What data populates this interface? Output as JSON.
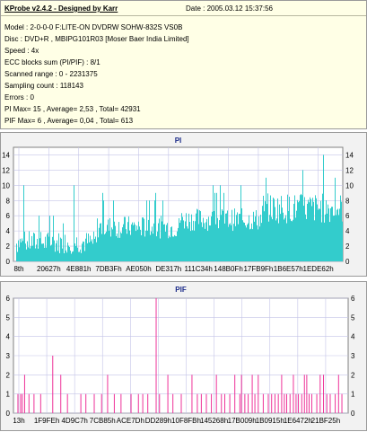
{
  "header": {
    "app_title": "KProbe v2.4.2 - Designed by Karr",
    "date": "Date : 2005.03.12 15:37:56"
  },
  "info_lines": [
    "Model : 2-0-0-0 F:LITE-ON DVDRW SOHW-832S  VS0B",
    "Disc : DVD+R , MBIPG101R03 [Moser Baer India Limited]",
    "Speed : 4x",
    "ECC blocks sum (PI/PIF) : 8/1",
    "Scanned range : 0 - 2231375",
    "Sampling count : 118143",
    "Errors : 0",
    "PI Max= 15 , Average= 2,53 , Total= 42931",
    "PIF Max= 6 , Average= 0,04 , Total= 613"
  ],
  "colors": {
    "panel_bg": "#f2f2f2",
    "plot_bg": "#ffffff",
    "grid": "#c4c4e8",
    "pi_fill": "#33cccc",
    "pif_bar": "#ee3399",
    "title_color": "#1a2a88"
  },
  "chart_data": [
    {
      "type": "bar",
      "title": "PI",
      "ylim": [
        0,
        15
      ],
      "y_ticks": [
        "0",
        "2",
        "4",
        "6",
        "8",
        "10",
        "12",
        "14"
      ],
      "x_tick_labels": [
        "8th",
        "20627h",
        "4E881h",
        "7DB3Fh",
        "AE050h",
        "DE317h",
        "111C34h",
        "148B0Fh",
        "17FB9Fh",
        "1B6E57h",
        "1EDE62h"
      ],
      "grid": true,
      "series": [
        {
          "description_segments": [
            {
              "range": "8th - 7DB3Fh",
              "typical_range": [
                1,
                4
              ],
              "peaks": [
                5,
                6,
                7,
                10
              ]
            },
            {
              "range": "7DB3Fh - 111C34h",
              "typical_range": [
                3,
                6
              ],
              "peaks": [
                8,
                9
              ]
            },
            {
              "range": "111C34h - 17FB9Fh",
              "typical_range": [
                4,
                7
              ],
              "peaks": [
                9,
                10
              ]
            },
            {
              "range": "17FB9Fh - 1EDE62h",
              "typical_range": [
                5,
                9
              ],
              "peaks": [
                11,
                12,
                14
              ]
            }
          ],
          "max": 15,
          "average": 2.53
        }
      ]
    },
    {
      "type": "bar",
      "title": "PIF",
      "ylim": [
        0,
        6
      ],
      "y_ticks": [
        "0",
        "1",
        "2",
        "3",
        "4",
        "5",
        "6"
      ],
      "x_tick_labels": [
        "13h",
        "1F9FEh",
        "4D9C7h",
        "7CB85h",
        "ACE7Dh",
        "DD289h",
        "10F8FBh",
        "145268h",
        "17B009h",
        "1B0915h",
        "1E6472h",
        "21BF25h"
      ],
      "grid": true,
      "spikes": [
        {
          "x_fraction": 0.012,
          "value": 1
        },
        {
          "x_fraction": 0.02,
          "value": 1
        },
        {
          "x_fraction": 0.025,
          "value": 1
        },
        {
          "x_fraction": 0.032,
          "value": 2
        },
        {
          "x_fraction": 0.045,
          "value": 1
        },
        {
          "x_fraction": 0.06,
          "value": 1
        },
        {
          "x_fraction": 0.08,
          "value": 1
        },
        {
          "x_fraction": 0.116,
          "value": 3
        },
        {
          "x_fraction": 0.14,
          "value": 2
        },
        {
          "x_fraction": 0.16,
          "value": 1
        },
        {
          "x_fraction": 0.2,
          "value": 1
        },
        {
          "x_fraction": 0.215,
          "value": 1
        },
        {
          "x_fraction": 0.24,
          "value": 1
        },
        {
          "x_fraction": 0.262,
          "value": 1
        },
        {
          "x_fraction": 0.28,
          "value": 2
        },
        {
          "x_fraction": 0.3,
          "value": 1
        },
        {
          "x_fraction": 0.32,
          "value": 1
        },
        {
          "x_fraction": 0.35,
          "value": 1
        },
        {
          "x_fraction": 0.372,
          "value": 1
        },
        {
          "x_fraction": 0.385,
          "value": 1
        },
        {
          "x_fraction": 0.4,
          "value": 1
        },
        {
          "x_fraction": 0.425,
          "value": 6
        },
        {
          "x_fraction": 0.435,
          "value": 1
        },
        {
          "x_fraction": 0.46,
          "value": 2
        },
        {
          "x_fraction": 0.475,
          "value": 1
        },
        {
          "x_fraction": 0.5,
          "value": 1
        },
        {
          "x_fraction": 0.532,
          "value": 2
        },
        {
          "x_fraction": 0.548,
          "value": 1
        },
        {
          "x_fraction": 0.56,
          "value": 1
        },
        {
          "x_fraction": 0.575,
          "value": 1
        },
        {
          "x_fraction": 0.59,
          "value": 1
        },
        {
          "x_fraction": 0.605,
          "value": 2
        },
        {
          "x_fraction": 0.62,
          "value": 1
        },
        {
          "x_fraction": 0.63,
          "value": 1
        },
        {
          "x_fraction": 0.645,
          "value": 1
        },
        {
          "x_fraction": 0.66,
          "value": 2
        },
        {
          "x_fraction": 0.675,
          "value": 1
        },
        {
          "x_fraction": 0.68,
          "value": 2
        },
        {
          "x_fraction": 0.69,
          "value": 1
        },
        {
          "x_fraction": 0.7,
          "value": 1
        },
        {
          "x_fraction": 0.712,
          "value": 2
        },
        {
          "x_fraction": 0.72,
          "value": 1
        },
        {
          "x_fraction": 0.73,
          "value": 2
        },
        {
          "x_fraction": 0.745,
          "value": 1
        },
        {
          "x_fraction": 0.76,
          "value": 1
        },
        {
          "x_fraction": 0.77,
          "value": 1
        },
        {
          "x_fraction": 0.78,
          "value": 1
        },
        {
          "x_fraction": 0.79,
          "value": 1
        },
        {
          "x_fraction": 0.8,
          "value": 2
        },
        {
          "x_fraction": 0.808,
          "value": 1
        },
        {
          "x_fraction": 0.815,
          "value": 1
        },
        {
          "x_fraction": 0.825,
          "value": 1
        },
        {
          "x_fraction": 0.835,
          "value": 2
        },
        {
          "x_fraction": 0.843,
          "value": 1
        },
        {
          "x_fraction": 0.85,
          "value": 1
        },
        {
          "x_fraction": 0.86,
          "value": 1
        },
        {
          "x_fraction": 0.868,
          "value": 2
        },
        {
          "x_fraction": 0.875,
          "value": 2
        },
        {
          "x_fraction": 0.882,
          "value": 1
        },
        {
          "x_fraction": 0.89,
          "value": 1
        },
        {
          "x_fraction": 0.905,
          "value": 1
        },
        {
          "x_fraction": 0.915,
          "value": 2
        },
        {
          "x_fraction": 0.925,
          "value": 2
        },
        {
          "x_fraction": 0.935,
          "value": 1
        },
        {
          "x_fraction": 0.945,
          "value": 1
        },
        {
          "x_fraction": 0.96,
          "value": 1
        },
        {
          "x_fraction": 0.97,
          "value": 2
        },
        {
          "x_fraction": 0.98,
          "value": 1
        }
      ]
    }
  ]
}
